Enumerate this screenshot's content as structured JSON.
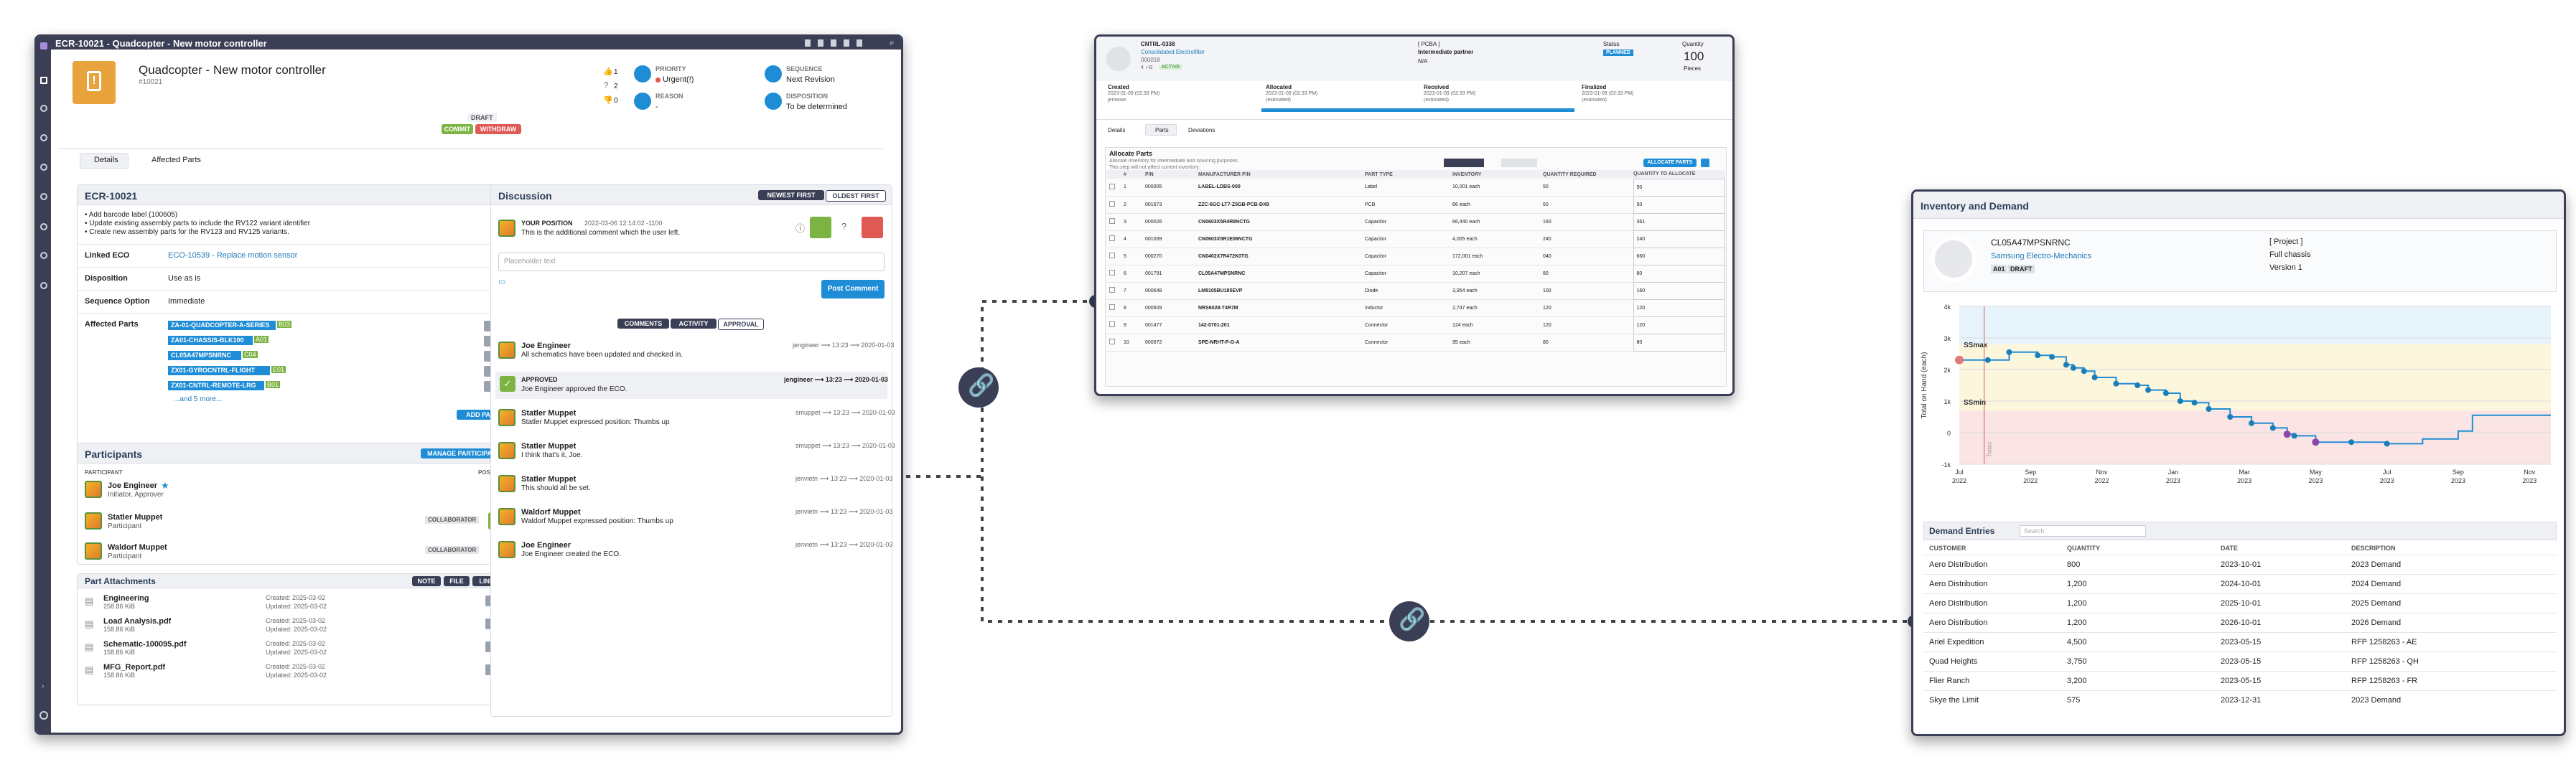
{
  "ecr": {
    "title_bar": "ECR-10021 - Quadcopter - New motor controller",
    "header": {
      "title": "Quadcopter - New motor controller",
      "number": "#10021",
      "status": "DRAFT",
      "commit": "COMMIT",
      "withdraw": "WITHDRAW",
      "votes": {
        "up": "1",
        "question": "2",
        "down": "0"
      },
      "priority_label": "PRIORITY",
      "priority_value": "Urgent(!)",
      "sequence_label": "SEQUENCE",
      "sequence_value": "Next Revision",
      "reason_label": "REASON",
      "reason_value": "-",
      "disposition_label": "DISPOSITION",
      "disposition_value": "To be determined"
    },
    "tabs": [
      "Details",
      "Affected Parts"
    ],
    "details": {
      "heading": "ECR-10021",
      "bullets": [
        "• Add barcode label (100605)",
        "• Update existing assembly parts to include the RV122 variant identifier",
        "• Create new assembly parts for the RV123 and RV125 variants."
      ],
      "linked_eco_label": "Linked ECO",
      "linked_eco_value": "ECO-10539 - Replace motion sensor",
      "disposition_label": "Disposition",
      "disposition_value": "Use as is",
      "sequence_label": "Sequence Option",
      "sequence_value": "Immediate",
      "affected_label": "Affected Parts",
      "affected": [
        {
          "name": "ZA-01-QUADCOPTER-A-SERIES",
          "rev": "B03"
        },
        {
          "name": "ZA01-CHASSIS-BLK100",
          "rev": "A01"
        },
        {
          "name": "CL05A47MPSNRNC",
          "rev": "C04"
        },
        {
          "name": "ZX01-GYROCNTRL-FLIGHT",
          "rev": "E01"
        },
        {
          "name": "ZX01-CNTRL-REMOTE-LRG",
          "rev": "B01"
        }
      ],
      "more": "...and 5 more...",
      "add_part": "ADD PART"
    },
    "participants": {
      "heading": "Participants",
      "manage": "MANAGE PARTICIPANTS",
      "col_participant": "PARTICIPANT",
      "col_position": "POSITION",
      "rows": [
        {
          "name": "Joe Engineer",
          "role": "Initiator, Approver",
          "badge": ""
        },
        {
          "name": "Statler Muppet",
          "role": "Participant",
          "badge": "COLLABORATOR"
        },
        {
          "name": "Waldorf Muppet",
          "role": "Participant",
          "badge": "COLLABORATOR"
        }
      ]
    },
    "attachments": {
      "heading": "Part Attachments",
      "note": "NOTE",
      "file": "FILE",
      "link": "LINK",
      "rows": [
        {
          "name": "Engineering",
          "size": "258.86 KiB",
          "created": "Created: 2025-03-02",
          "updated": "Updated: 2025-03-02"
        },
        {
          "name": "Load Analysis.pdf",
          "size": "158.86 KiB",
          "created": "Created: 2025-03-02",
          "updated": "Updated: 2025-03-02"
        },
        {
          "name": "Schematic-100095.pdf",
          "size": "158.86 KiB",
          "created": "Created: 2025-03-02",
          "updated": "Updated: 2025-03-02"
        },
        {
          "name": "MFG_Report.pdf",
          "size": "158.86 KiB",
          "created": "Created: 2025-03-02",
          "updated": "Updated: 2025-03-02"
        }
      ]
    },
    "discussion": {
      "heading": "Discussion",
      "newest": "NEWEST FIRST",
      "oldest": "OLDEST FIRST",
      "your_position": "YOUR POSITION",
      "position_date": "2022-03-06 12:14:02 -1100",
      "position_text": "This is the additional comment which the user left.",
      "placeholder": "Placeholder text",
      "post": "Post Comment",
      "filters": [
        "COMMENTS",
        "ACTIVITY",
        "APPROVAL"
      ],
      "entries": [
        {
          "name": "Joe Engineer",
          "text": "All schematics have been updated and checked in.",
          "meta": "jengineer ⟶ 13:23 ⟶ 2020-01-03"
        },
        {
          "name": "APPROVED",
          "text": "Joe Engineer approved the ECO.",
          "meta": "jengineer ⟶ 13:23 ⟶ 2020-01-03"
        },
        {
          "name": "Statler Muppet",
          "text": "Statler Muppet expressed position: Thumbs up",
          "meta": "smuppet ⟶ 13:23 ⟶ 2020-01-03"
        },
        {
          "name": "Statler Muppet",
          "text": "I think that's it, Joe.",
          "meta": "smuppet ⟶ 13:23 ⟶ 2020-01-03"
        },
        {
          "name": "Statler Muppet",
          "text": "This should all be set.",
          "meta": "jenvietn ⟶ 13:23 ⟶ 2020-01-03"
        },
        {
          "name": "Waldorf Muppet",
          "text": "Waldorf Muppet expressed position: Thumbs up",
          "meta": "jenvietn ⟶ 13:23 ⟶ 2020-01-03"
        },
        {
          "name": "Joe Engineer",
          "text": "Joe Engineer created the ECO.",
          "meta": "jenvietn ⟶ 13:23 ⟶ 2020-01-03"
        }
      ]
    }
  },
  "order": {
    "num": "CNTRL-0338",
    "company": "Consolidated Electrofilter",
    "sub": "000018",
    "sub2": "4 ✓B",
    "tag": "ACTIVE",
    "pcba_label": "[ PCBA ]",
    "pcba_val": "Intermediate partner",
    "pcba_val2": "N/A",
    "status_label": "Status",
    "status_val": "PLANNED",
    "qty_label": "Quantity",
    "qty_val": "100",
    "qty_unit": "Pieces",
    "steps": [
      {
        "label": "Created",
        "date": "2023-01-09 (02:33 PM)",
        "sub": "jemwise"
      },
      {
        "label": "Allocated",
        "date": "2023-01-09 (02:33 PM)",
        "sub": "(estimated)"
      },
      {
        "label": "Received",
        "date": "2023-01-09 (02:33 PM)",
        "sub": "(estimated)"
      },
      {
        "label": "Finalized",
        "date": "2023-01-09 (02:33 PM)",
        "sub": "(estimated)"
      }
    ],
    "tabs": [
      "Details",
      "Parts",
      "Deviations"
    ],
    "alloc_title": "Allocate Parts",
    "alloc_sub": "Allocate inventory for intermediate and sourcing purposes.",
    "alloc_sub2": "This step will not affect current inventory.",
    "alloc_btn": "ALLOCATE PARTS",
    "cols": [
      "#",
      "P/N",
      "MANUFACTURER P/N",
      "PART TYPE",
      "INVENTORY",
      "QUANTITY REQUIRED",
      "QUANTITY TO ALLOCATE"
    ],
    "rows": [
      [
        "1",
        "000005",
        "LABEL-LDBS-000",
        "Label",
        "10,001 each",
        "50",
        "50"
      ],
      [
        "2",
        "001673",
        "ZZC-6GC-LT7-Z5GB-PCB-DX8",
        "PCB",
        "66 each",
        "50",
        "50"
      ],
      [
        "3",
        "000026",
        "CN0603X5R4R8NCTG",
        "Capacitor",
        "66,440 each",
        "160",
        "361"
      ],
      [
        "4",
        "001039",
        "CN0603X5R1E06NCTG",
        "Capacitor",
        "4,005 each",
        "240",
        "240"
      ],
      [
        "5",
        "000270",
        "CN0402X7R472K0TG",
        "Capacitor",
        "172,001 each",
        "040",
        "660"
      ],
      [
        "6",
        "001791",
        "CL05A47MPSNRNC",
        "Capacitor",
        "10,207 each",
        "80",
        "80"
      ],
      [
        "7",
        "000648",
        "LM8105BU185EVP",
        "Diode",
        "3,954 each",
        "100",
        "160"
      ],
      [
        "8",
        "000509",
        "NRS6028-T4R7M",
        "Inductor",
        "2,747 each",
        "120",
        "120"
      ],
      [
        "9",
        "001477",
        "142-0701-201",
        "Connector",
        "124 each",
        "120",
        "120"
      ],
      [
        "10",
        "000072",
        "SPE-NRHT-P-G-A",
        "Connector",
        "95 each",
        "80",
        "80"
      ]
    ]
  },
  "inventory": {
    "title": "Inventory and Demand",
    "pn": "CL05A47MPSNRNC",
    "mfr": "Samsung Electro-Mechanics",
    "rev": "A01",
    "status": "DRAFT",
    "project": "[ Project ]",
    "chassis": "Full chassis",
    "version": "Version 1",
    "demand_title": "Demand Entries",
    "search_placeholder": "Search",
    "cols": [
      "CUSTOMER",
      "QUANTITY",
      "DATE",
      "DESCRIPTION"
    ],
    "rows": [
      [
        "Aero Distribution",
        "800",
        "2023-10-01",
        "2023 Demand"
      ],
      [
        "Aero Distribution",
        "1,200",
        "2024-10-01",
        "2024 Demand"
      ],
      [
        "Aero Distribution",
        "1,200",
        "2025-10-01",
        "2025 Demand"
      ],
      [
        "Aero Distribution",
        "1,200",
        "2026-10-01",
        "2026 Demand"
      ],
      [
        "Ariel Expedition",
        "4,500",
        "2023-05-15",
        "RFP 1258263 - AE"
      ],
      [
        "Quad Heights",
        "3,750",
        "2023-05-15",
        "RFP 1258263 - QH"
      ],
      [
        "Flier Ranch",
        "3,200",
        "2023-05-15",
        "RFP 1258263 - FR"
      ],
      [
        "Skye the Limit",
        "575",
        "2023-12-31",
        "2023 Demand"
      ]
    ]
  },
  "chart_data": {
    "type": "line",
    "ylabel": "Total on Hand (each)",
    "ylim": [
      -1,
      4
    ],
    "yticks": [
      "4k",
      "3k",
      "2k",
      "1k",
      "0",
      "-1k"
    ],
    "xticks": [
      "Jul",
      "Sep",
      "Nov",
      "Jan",
      "Mar",
      "May",
      "Jul",
      "Sep",
      "Nov"
    ],
    "xticks_year": [
      "2022",
      "2022",
      "2022",
      "2023",
      "2023",
      "2023",
      "2023",
      "2023",
      "2023"
    ],
    "bands": {
      "ssmax_label": "SSmax",
      "ssmin_label": "SSmin",
      "ssmax": 2.8,
      "ssmin": 0.7
    },
    "today_label": "Today",
    "series": [
      {
        "values": [
          [
            0.0,
            2.3
          ],
          [
            0.4,
            2.3
          ],
          [
            0.7,
            2.55
          ],
          [
            1.1,
            2.45
          ],
          [
            1.3,
            2.4
          ],
          [
            1.5,
            2.15
          ],
          [
            1.6,
            2.05
          ],
          [
            1.75,
            1.95
          ],
          [
            1.9,
            1.75
          ],
          [
            2.2,
            1.55
          ],
          [
            2.5,
            1.5
          ],
          [
            2.65,
            1.35
          ],
          [
            2.9,
            1.25
          ],
          [
            3.1,
            1.0
          ],
          [
            3.3,
            0.95
          ],
          [
            3.5,
            0.75
          ],
          [
            3.8,
            0.5
          ],
          [
            4.1,
            0.3
          ],
          [
            4.4,
            0.15
          ],
          [
            4.6,
            -0.05
          ],
          [
            4.7,
            -0.1
          ],
          [
            5.0,
            -0.3
          ],
          [
            5.5,
            -0.3
          ],
          [
            6.0,
            -0.35
          ],
          [
            6.5,
            -0.2
          ],
          [
            7.0,
            0.05
          ],
          [
            7.2,
            0.05
          ],
          [
            7.2,
            0.55
          ],
          [
            8.3,
            0.55
          ]
        ]
      }
    ]
  },
  "colors": {
    "primary": "#1f8dd6",
    "dark": "#3b3f56",
    "green": "#7cb342",
    "red": "#e05a55",
    "teal": "#1aa5b8",
    "orange": "#e8a33d"
  }
}
